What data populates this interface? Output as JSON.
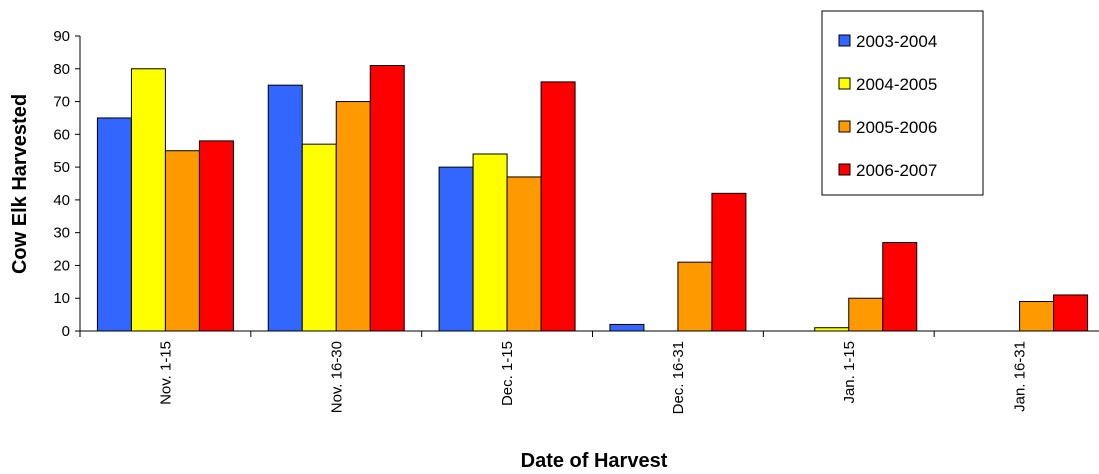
{
  "chart_data": {
    "type": "bar",
    "title": "",
    "xlabel": "Date of Harvest",
    "ylabel": "Cow Elk Harvested",
    "categories": [
      "Nov. 1-15",
      "Nov. 16-30",
      "Dec. 1-15",
      "Dec. 16-31",
      "Jan. 1-15",
      "Jan. 16-31"
    ],
    "series": [
      {
        "name": "2003-2004",
        "color": "#3366FF",
        "values": [
          65,
          75,
          50,
          2,
          0,
          0
        ]
      },
      {
        "name": "2004-2005",
        "color": "#FFFF00",
        "values": [
          80,
          57,
          54,
          0,
          1,
          0
        ]
      },
      {
        "name": "2005-2006",
        "color": "#FF9900",
        "values": [
          55,
          70,
          47,
          21,
          10,
          9
        ]
      },
      {
        "name": "2006-2007",
        "color": "#FF0000",
        "values": [
          58,
          81,
          76,
          42,
          27,
          11
        ]
      }
    ],
    "ylim": [
      0,
      90
    ],
    "yticks": [
      0,
      10,
      20,
      30,
      40,
      50,
      60,
      70,
      80,
      90
    ],
    "grid": false,
    "legend_position": "top-right"
  }
}
